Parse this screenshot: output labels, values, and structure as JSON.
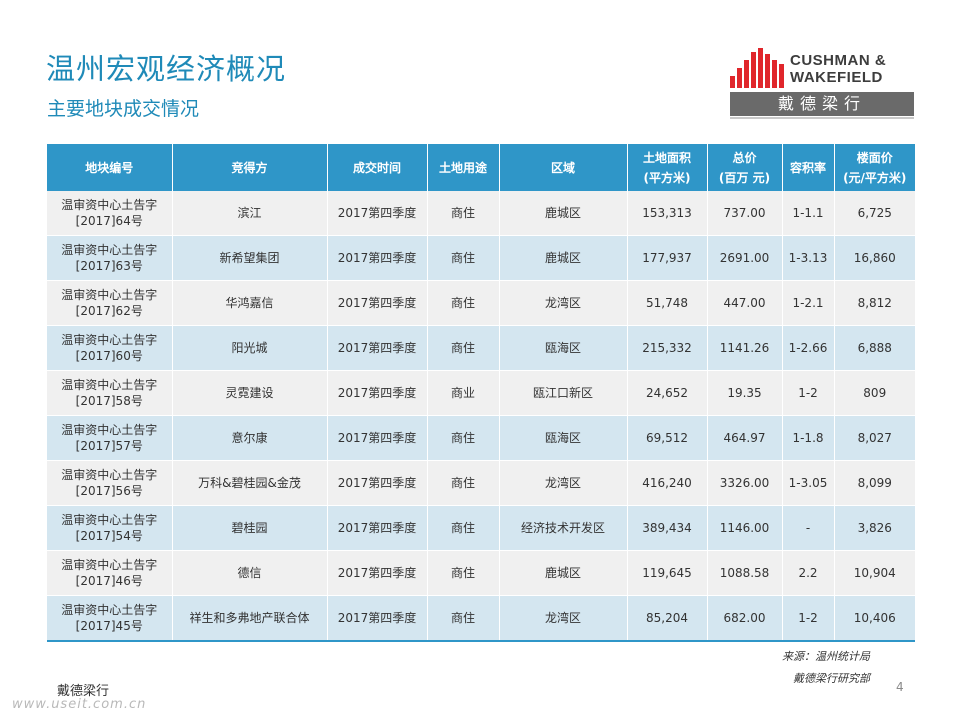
{
  "header": {
    "title": "温州宏观经济概况",
    "subtitle": "主要地块成交情况"
  },
  "logo": {
    "line1": "CUSHMAN &",
    "line2": "WAKEFIELD",
    "chinese": "戴德梁行",
    "accent_color": "#e0262b"
  },
  "table": {
    "columns": [
      {
        "line1": "地块编号",
        "line2": ""
      },
      {
        "line1": "竞得方",
        "line2": ""
      },
      {
        "line1": "成交时间",
        "line2": ""
      },
      {
        "line1": "土地用途",
        "line2": ""
      },
      {
        "line1": "区域",
        "line2": ""
      },
      {
        "line1": "土地面积",
        "line2": "(平方米)"
      },
      {
        "line1": "总价",
        "line2": "(百万 元)"
      },
      {
        "line1": "容积率",
        "line2": ""
      },
      {
        "line1": "楼面价",
        "line2": "(元/平方米)"
      }
    ],
    "rows": [
      {
        "id1": "温审资中心土告字",
        "id2": "[2017]64号",
        "buyer": "滨江",
        "time": "2017第四季度",
        "use": "商住",
        "area": "鹿城区",
        "land": "153,313",
        "price": "737.00",
        "far": "1-1.1",
        "unit": "6,725"
      },
      {
        "id1": "温审资中心土告字",
        "id2": "[2017]63号",
        "buyer": "新希望集团",
        "time": "2017第四季度",
        "use": "商住",
        "area": "鹿城区",
        "land": "177,937",
        "price": "2691.00",
        "far": "1-3.13",
        "unit": "16,860"
      },
      {
        "id1": "温审资中心土告字",
        "id2": "[2017]62号",
        "buyer": "华鸿嘉信",
        "time": "2017第四季度",
        "use": "商住",
        "area": "龙湾区",
        "land": "51,748",
        "price": "447.00",
        "far": "1-2.1",
        "unit": "8,812"
      },
      {
        "id1": "温审资中心土告字",
        "id2": "[2017]60号",
        "buyer": "阳光城",
        "time": "2017第四季度",
        "use": "商住",
        "area": "瓯海区",
        "land": "215,332",
        "price": "1141.26",
        "far": "1-2.66",
        "unit": "6,888"
      },
      {
        "id1": "温审资中心土告字",
        "id2": "[2017]58号",
        "buyer": "灵霓建设",
        "time": "2017第四季度",
        "use": "商业",
        "area": "瓯江口新区",
        "land": "24,652",
        "price": "19.35",
        "far": "1-2",
        "unit": "809"
      },
      {
        "id1": "温审资中心土告字",
        "id2": "[2017]57号",
        "buyer": "意尔康",
        "time": "2017第四季度",
        "use": "商住",
        "area": "瓯海区",
        "land": "69,512",
        "price": "464.97",
        "far": "1-1.8",
        "unit": "8,027"
      },
      {
        "id1": "温审资中心土告字",
        "id2": "[2017]56号",
        "buyer": "万科&碧桂园&金茂",
        "time": "2017第四季度",
        "use": "商住",
        "area": "龙湾区",
        "land": "416,240",
        "price": "3326.00",
        "far": "1-3.05",
        "unit": "8,099"
      },
      {
        "id1": "温审资中心土告字",
        "id2": "[2017]54号",
        "buyer": "碧桂园",
        "time": "2017第四季度",
        "use": "商住",
        "area": "经济技术开发区",
        "land": "389,434",
        "price": "1146.00",
        "far": "-",
        "unit": "3,826"
      },
      {
        "id1": "温审资中心土告字",
        "id2": "[2017]46号",
        "buyer": "德信",
        "time": "2017第四季度",
        "use": "商住",
        "area": "鹿城区",
        "land": "119,645",
        "price": "1088.58",
        "far": "2.2",
        "unit": "10,904"
      },
      {
        "id1": "温审资中心土告字",
        "id2": "[2017]45号",
        "buyer": "祥生和多弗地产联合体",
        "time": "2017第四季度",
        "use": "商住",
        "area": "龙湾区",
        "land": "85,204",
        "price": "682.00",
        "far": "1-2",
        "unit": "10,406"
      }
    ]
  },
  "footer": {
    "source_line1": "来源：温州统计局",
    "source_line2": "戴德梁行研究部",
    "page_number": "4",
    "brand": "戴德梁行",
    "watermark": "www.useit.com.cn"
  },
  "colors": {
    "title": "#1f8ab8",
    "header_bg": "#2f96c8",
    "row_odd": "#f0f0f0",
    "row_even": "#d4e6f0"
  }
}
